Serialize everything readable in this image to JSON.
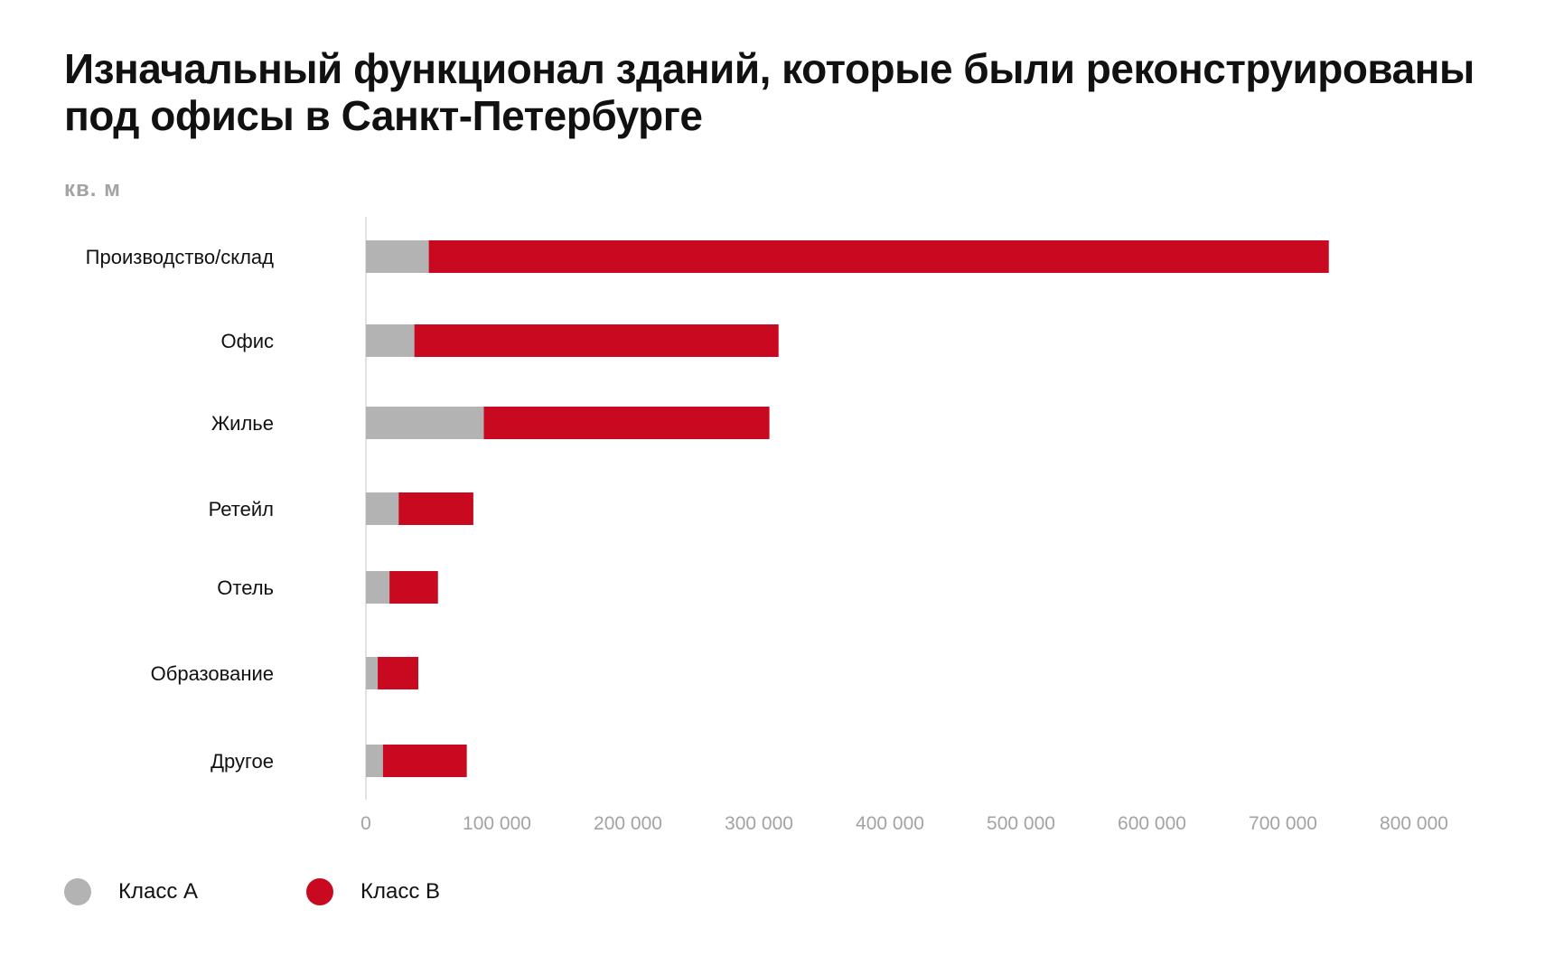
{
  "title_line1": "Изначальный функционал зданий, которые были реконструированы",
  "title_line2": "под офисы в Санкт-Петербурге",
  "unit_label": "кв. м",
  "colors": {
    "class_a": "#b3b3b3",
    "class_b": "#c8091f",
    "axis": "#d9d9d9",
    "tick_text": "#a3a3a3",
    "category_text": "#111111"
  },
  "legend": [
    {
      "label": "Класс А",
      "color": "#b3b3b3"
    },
    {
      "label": "Класс В",
      "color": "#c8091f"
    }
  ],
  "chart_data": {
    "type": "bar",
    "orientation": "horizontal",
    "stacked": true,
    "title": "Изначальный функционал зданий, которые были реконструированы под офисы в Санкт-Петербурге",
    "xlabel": "кв. м",
    "ylabel": "",
    "xlim": [
      0,
      800000
    ],
    "xticks": [
      0,
      100000,
      200000,
      300000,
      400000,
      500000,
      600000,
      700000,
      800000
    ],
    "xtick_labels": [
      "0",
      "100 000",
      "200 000",
      "300 000",
      "400 000",
      "500 000",
      "600 000",
      "700 000",
      "800 000"
    ],
    "categories": [
      "Производство/склад",
      "Офис",
      "Жилье",
      "Ретейл",
      "Отель",
      "Образование",
      "Другое"
    ],
    "series": [
      {
        "name": "Класс А",
        "color": "#b3b3b3",
        "values": [
          48000,
          37000,
          90000,
          25000,
          18000,
          9000,
          13000
        ]
      },
      {
        "name": "Класс В",
        "color": "#c8091f",
        "values": [
          687000,
          278000,
          218000,
          57000,
          37000,
          31000,
          64000
        ]
      }
    ],
    "legend_position": "bottom-left",
    "grid": false
  }
}
